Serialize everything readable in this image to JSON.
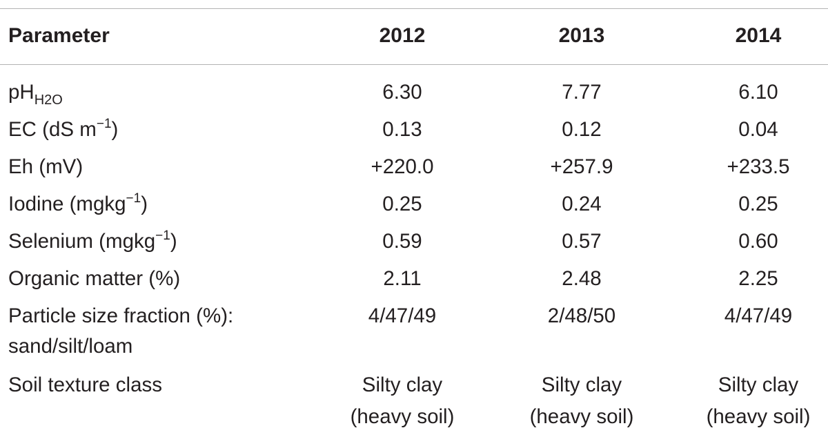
{
  "table": {
    "headers": [
      "Parameter",
      "2012",
      "2013",
      "2014"
    ],
    "rows": [
      {
        "parameter": "pH",
        "parameter_sub": "H2O",
        "values": [
          "6.30",
          "7.77",
          "6.10"
        ]
      },
      {
        "parameter": "EC (dS m",
        "parameter_sup": "−1",
        "parameter_suffix": ")",
        "values": [
          "0.13",
          "0.12",
          "0.04"
        ]
      },
      {
        "parameter": "Eh (mV)",
        "values": [
          "+220.0",
          "+257.9",
          "+233.5"
        ]
      },
      {
        "parameter": "Iodine (mgkg",
        "parameter_sup": "−1",
        "parameter_suffix": ")",
        "values": [
          "0.25",
          "0.24",
          "0.25"
        ]
      },
      {
        "parameter": "Selenium (mgkg",
        "parameter_sup": "−1",
        "parameter_suffix": ")",
        "values": [
          "0.59",
          "0.57",
          "0.60"
        ]
      },
      {
        "parameter": "Organic matter (%)",
        "values": [
          "2.11",
          "2.48",
          "2.25"
        ]
      },
      {
        "parameter": "Particle size fraction (%):",
        "parameter_line2": "sand/silt/loam",
        "values": [
          "4/47/49",
          "2/48/50",
          "4/47/49"
        ]
      },
      {
        "parameter": "Soil texture class",
        "values": [
          "Silty clay",
          "Silty clay",
          "Silty clay"
        ],
        "values_line2": [
          "(heavy soil)",
          "(heavy soil)",
          "(heavy soil)"
        ]
      }
    ]
  }
}
